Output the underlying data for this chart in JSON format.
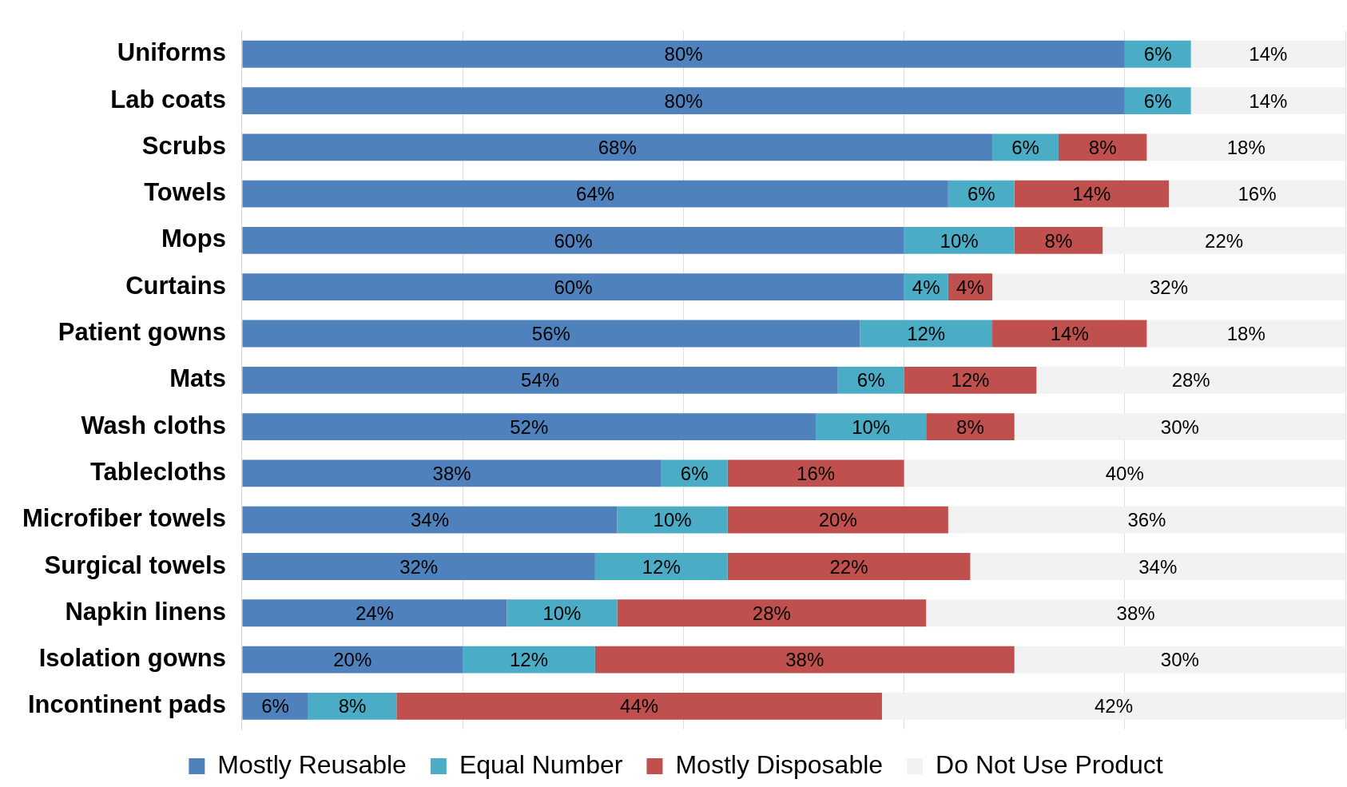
{
  "chart_data": {
    "type": "bar",
    "orientation": "horizontal",
    "stacked": true,
    "legend": "bottom",
    "grid": "x",
    "tick_labels": "y",
    "categories": [
      "Uniforms",
      "Lab coats",
      "Scrubs",
      "Towels",
      "Mops",
      "Curtains",
      "Patient gowns",
      "Mats",
      "Wash cloths",
      "Tablecloths",
      "Microfiber towels",
      "Surgical towels",
      "Napkin linens",
      "Isolation gowns",
      "Incontinent pads"
    ],
    "series": [
      {
        "name": "Mostly Reusable",
        "color": "#4f81bd",
        "values": [
          80,
          80,
          68,
          64,
          60,
          60,
          56,
          54,
          52,
          38,
          34,
          32,
          24,
          20,
          6
        ],
        "value_labels": [
          "80%",
          "80%",
          "68%",
          "64%",
          "60%",
          "60%",
          "56%",
          "54%",
          "52%",
          "38%",
          "34%",
          "32%",
          "24%",
          "20%",
          "6%"
        ]
      },
      {
        "name": "Equal Number",
        "color": "#4bacc6",
        "values": [
          6,
          6,
          6,
          6,
          10,
          4,
          12,
          6,
          10,
          6,
          10,
          12,
          10,
          12,
          8
        ],
        "value_labels": [
          "6%",
          "6%",
          "6%",
          "6%",
          "10%",
          "4%",
          "12%",
          "6%",
          "10%",
          "6%",
          "10%",
          "12%",
          "10%",
          "12%",
          "8%"
        ]
      },
      {
        "name": "Mostly Disposable",
        "color": "#c0504d",
        "values": [
          null,
          null,
          8,
          14,
          8,
          4,
          14,
          12,
          8,
          16,
          20,
          22,
          28,
          38,
          44
        ],
        "value_labels": [
          null,
          null,
          "8%",
          "14%",
          "8%",
          "4%",
          "14%",
          "12%",
          "8%",
          "16%",
          "20%",
          "22%",
          "28%",
          "38%",
          "44%"
        ]
      },
      {
        "name": "Do Not Use Product",
        "color": "#f2f2f2",
        "values": [
          14,
          14,
          18,
          16,
          22,
          32,
          18,
          28,
          30,
          40,
          36,
          34,
          38,
          30,
          42
        ],
        "value_labels": [
          "14%",
          "14%",
          "18%",
          "16%",
          "22%",
          "32%",
          "18%",
          "28%",
          "30%",
          "40%",
          "36%",
          "34%",
          "38%",
          "30%",
          "42%"
        ]
      }
    ]
  }
}
